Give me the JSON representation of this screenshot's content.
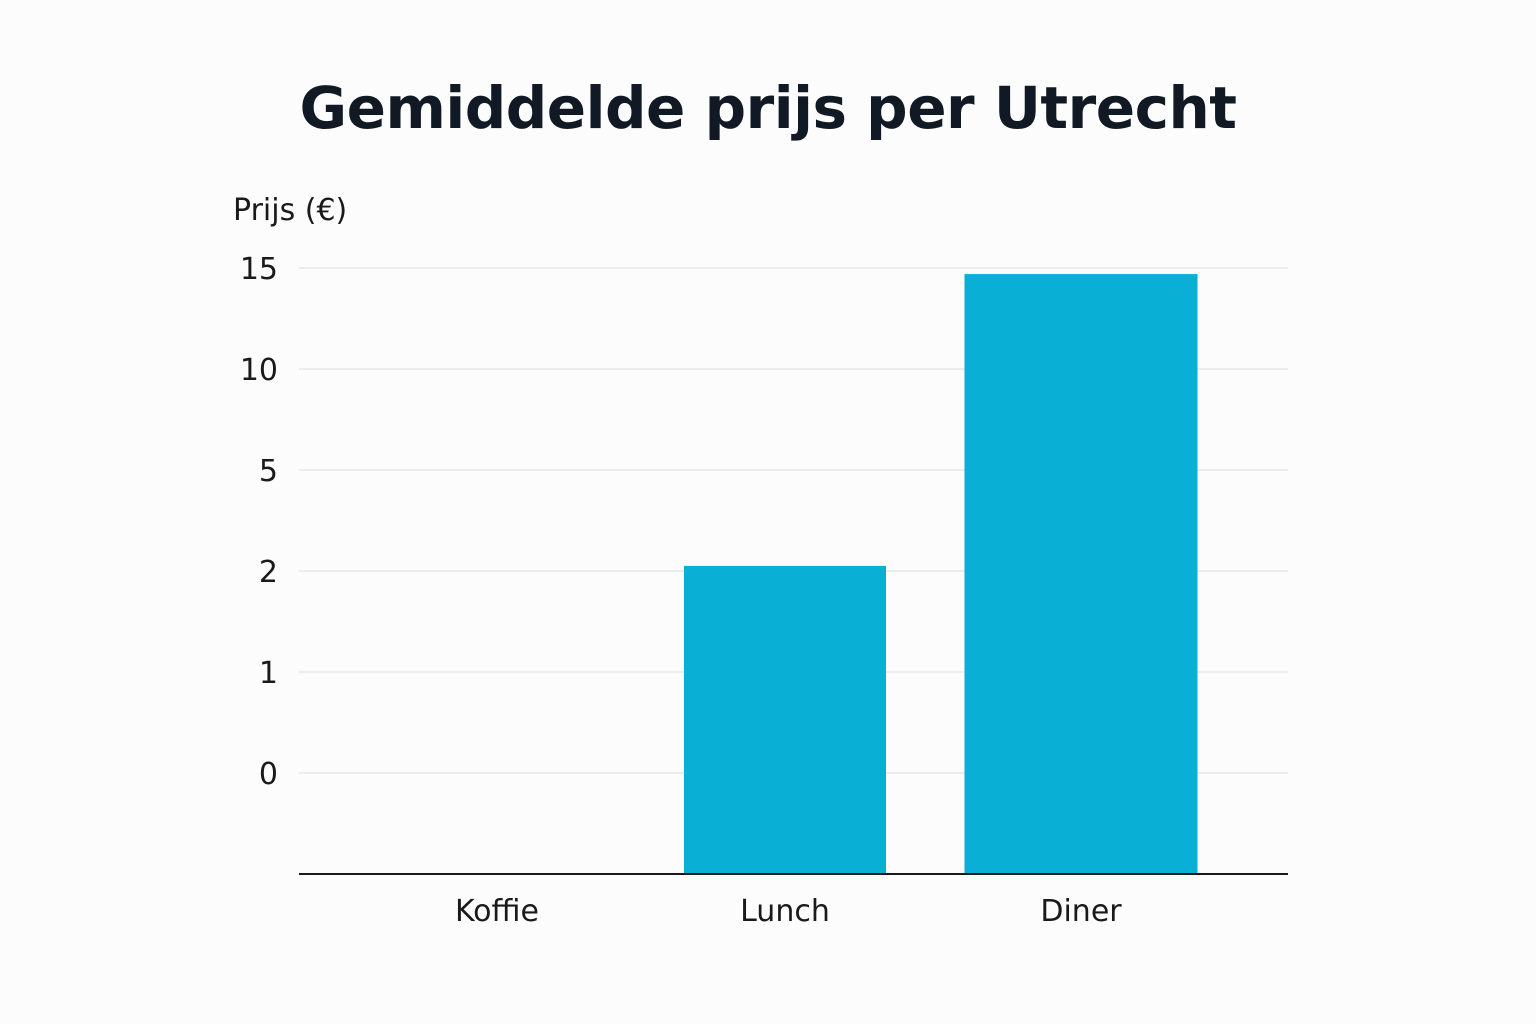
{
  "chart_data": {
    "type": "bar",
    "title": "Gemiddelde prijs per Utrecht",
    "xlabel": "",
    "ylabel": "Prijs (€)",
    "categories": [
      "Koffie",
      "Lunch",
      "Diner"
    ],
    "values": [
      -1.0,
      2.15,
      14.7
    ],
    "y_ticks": [
      {
        "label": "0",
        "value": 0
      },
      {
        "label": "1",
        "value": 1
      },
      {
        "label": "2",
        "value": 2
      },
      {
        "label": "5",
        "value": 5
      },
      {
        "label": "10",
        "value": 10
      },
      {
        "label": "15",
        "value": 15
      }
    ],
    "grid": true,
    "legend": "none",
    "bar_color": "#0aafd6"
  }
}
